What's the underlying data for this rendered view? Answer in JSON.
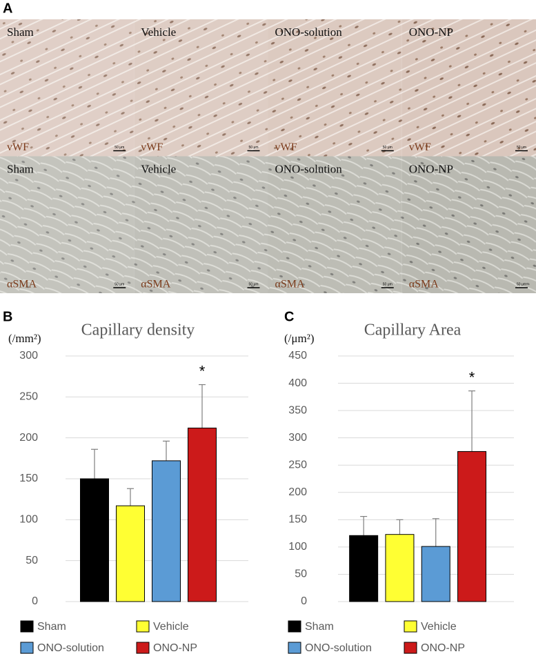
{
  "panel_labels": [
    "A",
    "B",
    "C"
  ],
  "micrographs": {
    "rows": [
      {
        "stain": "vWF",
        "groups": [
          "Sham",
          "Vehicle",
          "ONO-solution",
          "ONO-NP"
        ]
      },
      {
        "stain": "αSMA",
        "groups": [
          "Sham",
          "Vehicle",
          "ONO-solution",
          "ONO-NP"
        ]
      }
    ],
    "scale_bar": "50 μm"
  },
  "chart_data": [
    {
      "type": "bar",
      "title": "Capillary density",
      "y_label": "(/mm²)",
      "categories": [
        "Sham",
        "Vehicle",
        "ONO-solution",
        "ONO-NP"
      ],
      "values": [
        150,
        117,
        172,
        212
      ],
      "errors": [
        36,
        21,
        24,
        53
      ],
      "colors": [
        "#000000",
        "#ffff33",
        "#5b9bd5",
        "#cc1a1a"
      ],
      "ylim": [
        0,
        300
      ],
      "yticks": [
        0,
        50,
        100,
        150,
        200,
        250,
        300
      ],
      "grid": true,
      "annotations": [
        {
          "text": "*",
          "category": "ONO-NP"
        }
      ]
    },
    {
      "type": "bar",
      "title": "Capillary Area",
      "y_label": "(/μm²)",
      "categories": [
        "Sham",
        "Vehicle",
        "ONO-solution",
        "ONO-NP"
      ],
      "values": [
        121,
        123,
        101,
        275
      ],
      "errors": [
        35,
        27,
        51,
        111
      ],
      "colors": [
        "#000000",
        "#ffff33",
        "#5b9bd5",
        "#cc1a1a"
      ],
      "ylim": [
        0,
        450
      ],
      "yticks": [
        0,
        50,
        100,
        150,
        200,
        250,
        300,
        350,
        400,
        450
      ],
      "grid": true,
      "annotations": [
        {
          "text": "*",
          "category": "ONO-NP"
        }
      ]
    }
  ]
}
